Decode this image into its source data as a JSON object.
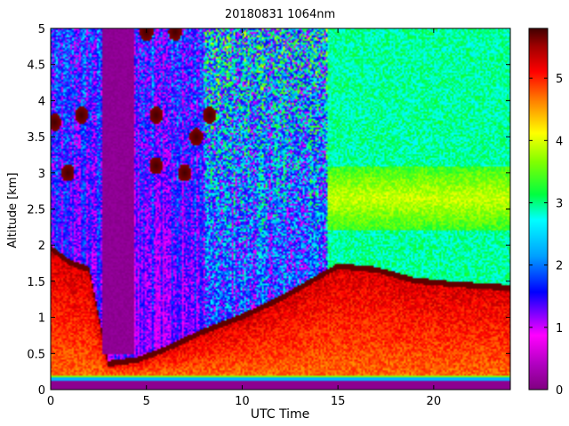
{
  "chart_data": {
    "type": "heatmap",
    "title": "20180831 1064nm",
    "xlabel": "UTC Time",
    "ylabel": "Altitude [km]",
    "xlim": [
      0,
      24
    ],
    "ylim": [
      0,
      5
    ],
    "clim": [
      0,
      5.8
    ],
    "colormap": "jet-with-purple-and-dark-brown-ends",
    "xticks": [
      0,
      5,
      10,
      15,
      20
    ],
    "xtick_labels": [
      "0",
      "5",
      "10",
      "15",
      "20"
    ],
    "yticks": [
      0,
      0.5,
      1,
      1.5,
      2,
      2.5,
      3,
      3.5,
      4,
      4.5,
      5
    ],
    "ytick_labels": [
      "0",
      "0.5",
      "1",
      "1.5",
      "2",
      "2.5",
      "3",
      "3.5",
      "4",
      "4.5",
      "5"
    ],
    "colorbar_ticks": [
      0,
      1,
      2,
      3,
      4,
      5
    ],
    "colorbar_tick_labels": [
      "0",
      "1",
      "2",
      "3",
      "4",
      "5"
    ],
    "colorbar_colors": [
      "#800080",
      "#ff00ff",
      "#0000ff",
      "#00ffff",
      "#00ff00",
      "#ffff00",
      "#ff0000",
      "#400000"
    ],
    "features": {
      "surface_layer_top_km": 0.2,
      "boundary_layer": [
        {
          "t": 0,
          "top": 2.0
        },
        {
          "t": 1,
          "top": 1.8
        },
        {
          "t": 2,
          "top": 1.7
        },
        {
          "t": 3,
          "top": 0.4
        },
        {
          "t": 4.5,
          "top": 0.45
        },
        {
          "t": 6,
          "top": 0.6
        },
        {
          "t": 8,
          "top": 0.85
        },
        {
          "t": 10,
          "top": 1.05
        },
        {
          "t": 12,
          "top": 1.3
        },
        {
          "t": 14,
          "top": 1.6
        },
        {
          "t": 15,
          "top": 1.75
        },
        {
          "t": 17,
          "top": 1.7
        },
        {
          "t": 19,
          "top": 1.55
        },
        {
          "t": 21,
          "top": 1.5
        },
        {
          "t": 24,
          "top": 1.45
        }
      ],
      "aerosol_layers": [
        {
          "t_start": 14.5,
          "t_end": 24,
          "bottom": 2.2,
          "top": 3.1,
          "value": 3.9
        },
        {
          "t_start": 15,
          "t_end": 24,
          "bottom": 3.3,
          "top": 4.2,
          "value": 2.6
        }
      ],
      "clouds": [
        {
          "t": 0.2,
          "alt": 3.7
        },
        {
          "t": 0.9,
          "alt": 3.0
        },
        {
          "t": 1.6,
          "alt": 3.8
        },
        {
          "t": 5.5,
          "alt": 3.8
        },
        {
          "t": 5.5,
          "alt": 3.1
        },
        {
          "t": 7.0,
          "alt": 3.0
        },
        {
          "t": 7.6,
          "alt": 3.5
        },
        {
          "t": 8.3,
          "alt": 3.8
        },
        {
          "t": 5.0,
          "alt": 4.95
        },
        {
          "t": 6.5,
          "alt": 4.95
        }
      ],
      "clear_air_gap": {
        "t_start": 2.7,
        "t_end": 4.4,
        "bottom": 0.5,
        "top": 5
      }
    }
  }
}
